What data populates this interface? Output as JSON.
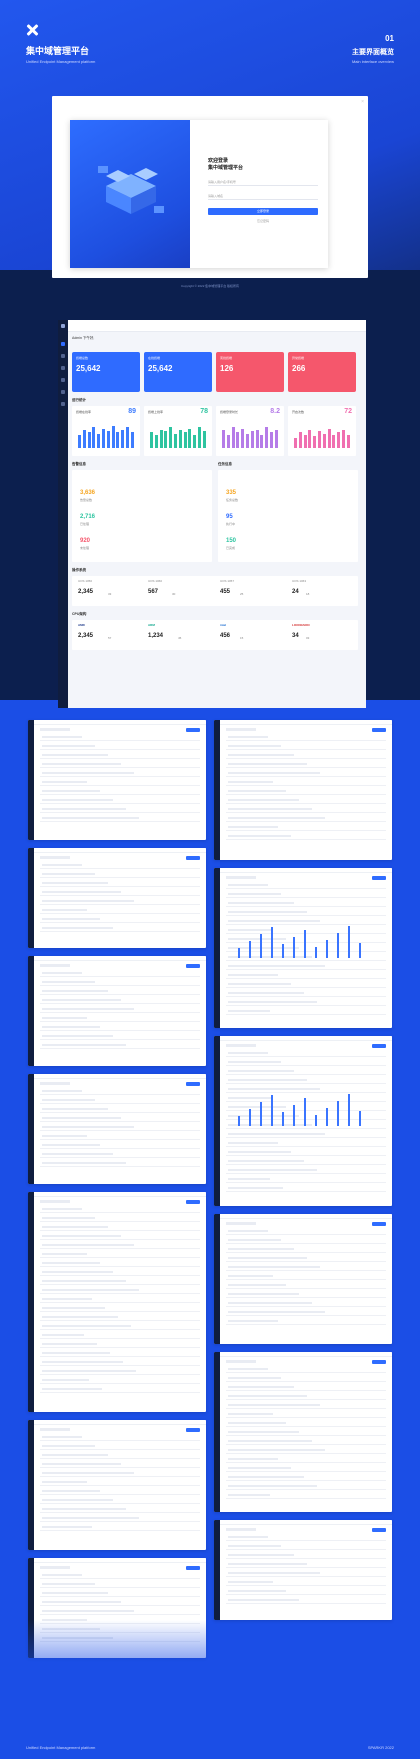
{
  "header": {
    "title": "集中域管理平台",
    "subtitle": "Unified Endpoint Management platform",
    "number": "01",
    "section_title": "主要界面概览",
    "section_subtitle": "Main interface overview"
  },
  "login": {
    "welcome_line1": "欢迎登录",
    "welcome_line2": "集中域管理平台",
    "username_placeholder": "请输入用户名/手机号",
    "domain_placeholder": "请输入域名",
    "login_button": "立即登录",
    "forgot": "忘记密码",
    "footer": "Copyright © 2022 集中域管理平台 版权所有"
  },
  "dashboard": {
    "greeting": "Admin 下午好,",
    "kpis": [
      {
        "label": "终端总数",
        "value": "25,642",
        "color": "#2f6bff"
      },
      {
        "label": "在线终端",
        "value": "25,642",
        "color": "#2f6bff"
      },
      {
        "label": "离线终端",
        "value": "126",
        "color": "#f5576c"
      },
      {
        "label": "异常终端",
        "value": "266",
        "color": "#f5576c"
      }
    ],
    "section_runtime": "运行统计",
    "mini_charts": [
      {
        "title": "终端在线率",
        "value": "89",
        "unit": "%",
        "color": "#3d7cff",
        "values": [
          0.5,
          0.7,
          0.6,
          0.8,
          0.55,
          0.75,
          0.65,
          0.85,
          0.6,
          0.7,
          0.8,
          0.6
        ]
      },
      {
        "title": "终端上线率",
        "value": "78",
        "unit": "%",
        "color": "#2ec4a0",
        "values": [
          0.6,
          0.5,
          0.7,
          0.65,
          0.8,
          0.55,
          0.7,
          0.6,
          0.75,
          0.5,
          0.8,
          0.65
        ]
      },
      {
        "title": "终端登录时长",
        "value": "8.2",
        "unit": "h",
        "color": "#b57ce8",
        "values": [
          0.7,
          0.5,
          0.8,
          0.6,
          0.75,
          0.55,
          0.65,
          0.7,
          0.5,
          0.8,
          0.6,
          0.7
        ]
      },
      {
        "title": "开启次数",
        "value": "72",
        "unit": "%",
        "color": "#f06fb0",
        "values": [
          0.4,
          0.6,
          0.5,
          0.7,
          0.45,
          0.65,
          0.55,
          0.75,
          0.5,
          0.6,
          0.7,
          0.5
        ]
      }
    ],
    "section_alerts": "告警信息",
    "section_tasks": "任务信息",
    "alert_stats": [
      {
        "value": "3,636",
        "label": "告警总数"
      },
      {
        "value": "2,716",
        "label": "已处理"
      },
      {
        "value": "920",
        "label": "未处理"
      }
    ],
    "task_stats": [
      {
        "value": "335",
        "label": "任务总数"
      },
      {
        "value": "95",
        "label": "执行中"
      },
      {
        "value": "150",
        "label": "已完成"
      }
    ],
    "section_os": "操作系统",
    "os_stats": [
      {
        "name": "UOS 1050",
        "value": "2,345",
        "pct": "33"
      },
      {
        "name": "UOS 1060",
        "value": "567",
        "pct": "30"
      },
      {
        "name": "UOS 1057",
        "value": "455",
        "pct": "25"
      },
      {
        "name": "UOS 1063",
        "value": "24",
        "pct": "18"
      }
    ],
    "section_cpu": "CPU架构",
    "cpu_stats": [
      {
        "name": "AMD",
        "value": "2,345",
        "pct": "57"
      },
      {
        "name": "ARM",
        "value": "1,234",
        "pct": "45"
      },
      {
        "name": "intel",
        "value": "456",
        "pct": "15"
      },
      {
        "name": "LOONGSON",
        "value": "34",
        "pct": "03"
      }
    ]
  },
  "footer": {
    "left": "Unified Endpoint Management platform",
    "right": "SPARKR 2022"
  }
}
